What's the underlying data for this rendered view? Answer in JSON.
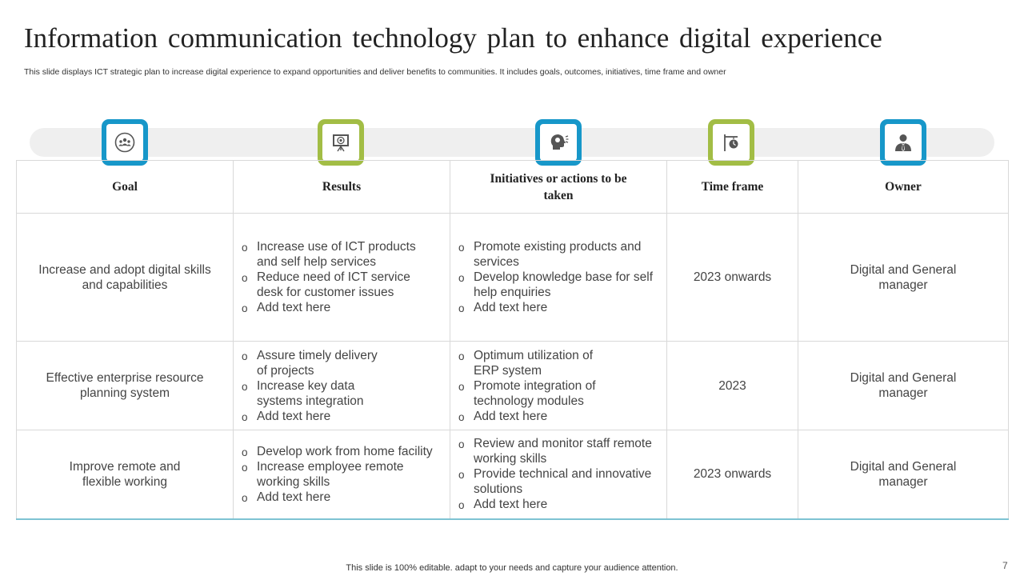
{
  "title": "Information communication technology plan to enhance digital experience",
  "subtitle": "This slide displays ICT strategic plan to increase digital experience to expand opportunities and deliver benefits to communities. It includes goals, outcomes, initiatives, time frame and owner",
  "icons": [
    {
      "name": "team-icon",
      "color": "#1797c9"
    },
    {
      "name": "presentation-target-icon",
      "color": "#a2bd45"
    },
    {
      "name": "head-idea-icon",
      "color": "#1797c9"
    },
    {
      "name": "signpost-clock-icon",
      "color": "#a2bd45"
    },
    {
      "name": "businessman-icon",
      "color": "#1797c9"
    }
  ],
  "table": {
    "headers": {
      "goal": "Goal",
      "results": "Results",
      "initiatives": "Initiatives or actions to be taken",
      "timeframe": "Time frame",
      "owner": "Owner"
    },
    "rows": [
      {
        "goal": "Increase  and adopt digital skills and capabilities",
        "results": [
          "Increase use of ICT products and self help services",
          "Reduce need of ICT service desk for customer issues",
          "Add text here"
        ],
        "initiatives": [
          "Promote existing products and services",
          "Develop knowledge base for self help enquiries",
          "Add text here"
        ],
        "timeframe": "2023 onwards",
        "owner": "Digital and General manager"
      },
      {
        "goal": "Effective  enterprise resource planning system",
        "results": [
          "Assure timely delivery of projects",
          "Increase  key data systems integration",
          "Add text here"
        ],
        "initiatives": [
          "Optimum utilization  of ERP system",
          "Promote integration of technology modules",
          "Add text here"
        ],
        "timeframe": "2023",
        "owner": "Digital and General manager"
      },
      {
        "goal": "Improve remote and flexible working",
        "results": [
          "Develop work from home facility",
          "Increase  employee remote working skills",
          "Add text here"
        ],
        "initiatives": [
          "Review and monitor staff remote working skills",
          "Provide technical and innovative solutions",
          "Add text here"
        ],
        "timeframe": "2023 onwards",
        "owner": "Digital and General manager"
      }
    ]
  },
  "footer": "This slide is 100% editable. adapt to your needs and capture your audience attention.",
  "page_number": "7"
}
